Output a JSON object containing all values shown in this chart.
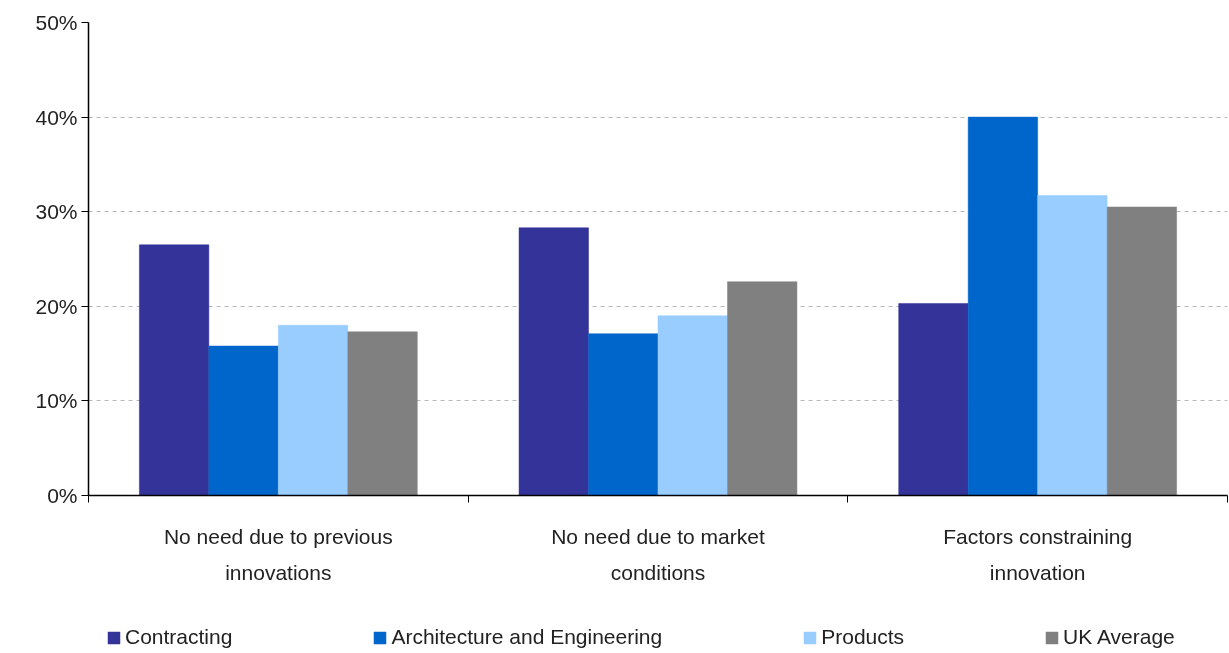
{
  "chart_data": {
    "type": "bar",
    "categories": [
      "No need due to previous innovations",
      "No need due to market conditions",
      "Factors constraining innovation"
    ],
    "series": [
      {
        "name": "Contracting",
        "color": "#333399",
        "values": [
          26.5,
          28.3,
          20.3
        ]
      },
      {
        "name": "Architecture and Engineering",
        "color": "#0066cc",
        "values": [
          15.8,
          17.1,
          40.0
        ]
      },
      {
        "name": "Products",
        "color": "#99ccff",
        "values": [
          18.0,
          19.0,
          31.7
        ]
      },
      {
        "name": "UK Average",
        "color": "#808080",
        "values": [
          17.3,
          22.6,
          30.5
        ]
      }
    ],
    "ylim": [
      0,
      50
    ],
    "yticks": [
      {
        "value": 0,
        "label": "0%"
      },
      {
        "value": 10,
        "label": "10%"
      },
      {
        "value": 20,
        "label": "20%"
      },
      {
        "value": 30,
        "label": "30%"
      },
      {
        "value": 40,
        "label": "40%"
      },
      {
        "value": 50,
        "label": "50%"
      }
    ],
    "grid": "y",
    "legend": "bottom"
  }
}
